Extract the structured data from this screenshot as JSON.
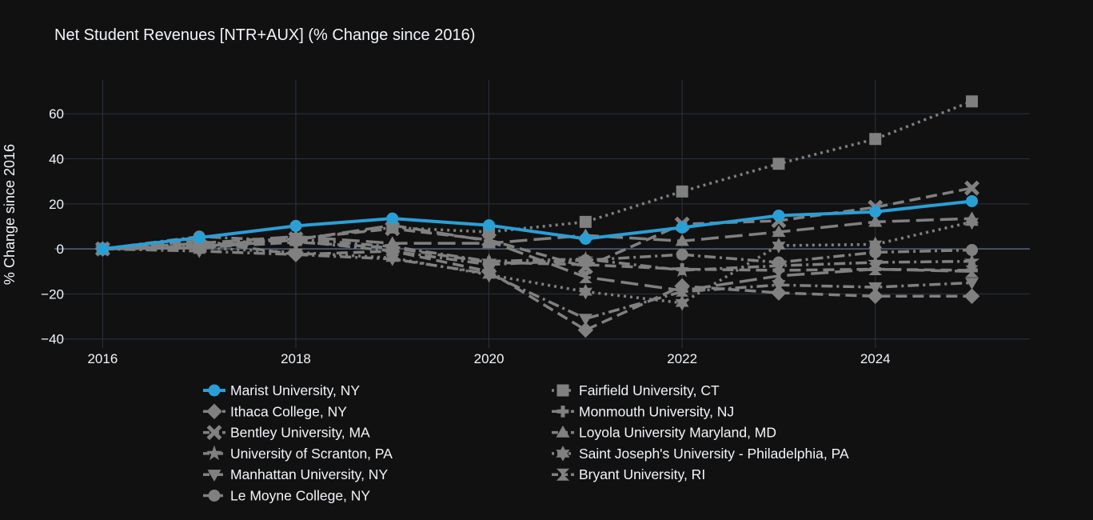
{
  "chart_data": {
    "type": "line",
    "title": "Net Student Revenues [NTR+AUX] (% Change since 2016)",
    "xlabel": "",
    "ylabel": "% Change since 2016",
    "x": [
      2016,
      2017,
      2018,
      2019,
      2020,
      2021,
      2022,
      2023,
      2024,
      2025
    ],
    "xticks": [
      2016,
      2018,
      2020,
      2022,
      2024
    ],
    "xtick_labels": [
      "2016",
      "2018",
      "2020",
      "2022",
      "2024"
    ],
    "xlim": [
      2015.5,
      2025.6
    ],
    "yticks": [
      60,
      40,
      20,
      0,
      -20,
      -40
    ],
    "ytick_labels": [
      "60",
      "40",
      "20",
      "0",
      "−20",
      "−40"
    ],
    "ylim": [
      -44,
      75
    ],
    "grid": true,
    "legend_position": "bottom",
    "colors": {
      "background": "#111111",
      "grid": "#283442",
      "highlight": "#2a9fd6",
      "peer": "#808080",
      "text": "#f2f5fa"
    },
    "series": [
      {
        "name": "Marist University, NY",
        "marker": "circle",
        "dash": "solid",
        "highlight": true,
        "values": [
          0,
          5,
          10.2,
          13.5,
          10.5,
          4.5,
          9.5,
          14.8,
          16.5,
          21.2
        ]
      },
      {
        "name": "Ithaca College, NY",
        "marker": "diamond",
        "dash": "dash",
        "values": [
          0,
          3.5,
          -2.5,
          -1,
          -10,
          -36,
          -16.5,
          -19.5,
          -21,
          -21
        ]
      },
      {
        "name": "Bentley University, MA",
        "marker": "x",
        "dash": "dash",
        "values": [
          0,
          1.5,
          4.5,
          9,
          4,
          -8,
          11,
          12.5,
          18.5,
          27
        ]
      },
      {
        "name": "University of Scranton, PA",
        "marker": "star",
        "dash": "dashdot",
        "values": [
          0,
          1,
          4.5,
          1,
          -5.5,
          -4.5,
          -9.5,
          -7.5,
          -6,
          -5.5
        ]
      },
      {
        "name": "Manhattan University, NY",
        "marker": "triangle-down",
        "dash": "dashdot",
        "values": [
          0,
          -1,
          -2.5,
          -4.5,
          -11,
          -31,
          -19,
          -16,
          -17,
          -15
        ]
      },
      {
        "name": "Le Moyne College, NY",
        "marker": "circle",
        "dash": "dashdot",
        "values": [
          0,
          5.5,
          3.5,
          -1,
          -7,
          -5,
          -2.5,
          -6,
          -1.5,
          -0.5
        ]
      },
      {
        "name": "Fairfield University, CT",
        "marker": "square",
        "dash": "dot",
        "values": [
          0,
          2,
          4.5,
          9.5,
          7.5,
          12,
          25.5,
          37.8,
          48.8,
          65.5
        ]
      },
      {
        "name": "Monmouth University, NJ",
        "marker": "cross",
        "dash": "dash",
        "values": [
          0,
          0.5,
          3,
          0.5,
          -6,
          -7,
          -9,
          -9.5,
          -9,
          -9.5
        ]
      },
      {
        "name": "Loyola University Maryland, MD",
        "marker": "triangle-up",
        "dash": "longdash",
        "values": [
          0,
          2.5,
          5.5,
          2.5,
          2.5,
          6,
          3.5,
          7.5,
          12,
          13.5
        ]
      },
      {
        "name": "Saint Joseph's University - Philadelphia, PA",
        "marker": "star-six",
        "dash": "dot",
        "values": [
          0,
          0.5,
          -1.5,
          -4,
          -11.5,
          -19,
          -24,
          1.5,
          2,
          12
        ]
      },
      {
        "name": "Bryant University, RI",
        "marker": "hourglass",
        "dash": "longdash",
        "values": [
          0,
          0.5,
          4,
          10.5,
          3.5,
          -12.5,
          -18.5,
          -12,
          -9,
          -10
        ]
      }
    ]
  }
}
